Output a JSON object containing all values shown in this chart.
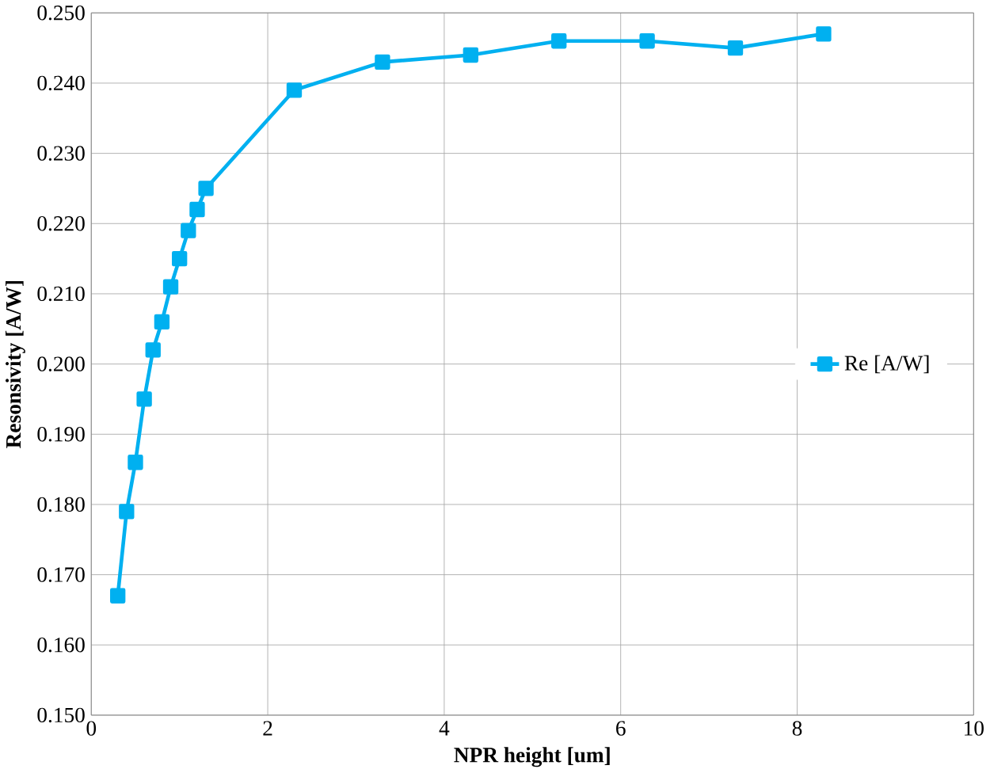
{
  "chart_data": {
    "type": "line",
    "xlabel": "NPR height [um]",
    "ylabel": "Resonsivity [A/W]",
    "series": [
      {
        "name": "Re [A/W]",
        "color": "#00b0f0",
        "x": [
          0.3,
          0.4,
          0.5,
          0.6,
          0.7,
          0.8,
          0.9,
          1.0,
          1.1,
          1.2,
          1.3,
          2.3,
          3.3,
          4.3,
          5.3,
          6.3,
          7.3,
          8.3
        ],
        "values": [
          0.167,
          0.179,
          0.186,
          0.195,
          0.202,
          0.206,
          0.211,
          0.215,
          0.219,
          0.222,
          0.225,
          0.239,
          0.243,
          0.244,
          0.246,
          0.246,
          0.245,
          0.247
        ]
      }
    ],
    "xlim": [
      0,
      10
    ],
    "xticks": [
      0,
      2,
      4,
      6,
      8,
      10
    ],
    "ylim": [
      0.15,
      0.25
    ],
    "yticks": [
      {
        "value": 0.15,
        "label": "0.150"
      },
      {
        "value": 0.16,
        "label": "0.160"
      },
      {
        "value": 0.17,
        "label": "0.170"
      },
      {
        "value": 0.18,
        "label": "0.180"
      },
      {
        "value": 0.19,
        "label": "0.190"
      },
      {
        "value": 0.2,
        "label": "0.200"
      },
      {
        "value": 0.21,
        "label": "0.210"
      },
      {
        "value": 0.22,
        "label": "0.220"
      },
      {
        "value": 0.23,
        "label": "0.230"
      },
      {
        "value": 0.24,
        "label": "0.240"
      },
      {
        "value": 0.25,
        "label": "0.250"
      }
    ],
    "grid": true,
    "legend": "right",
    "marker": "square",
    "line_style": "solid"
  }
}
